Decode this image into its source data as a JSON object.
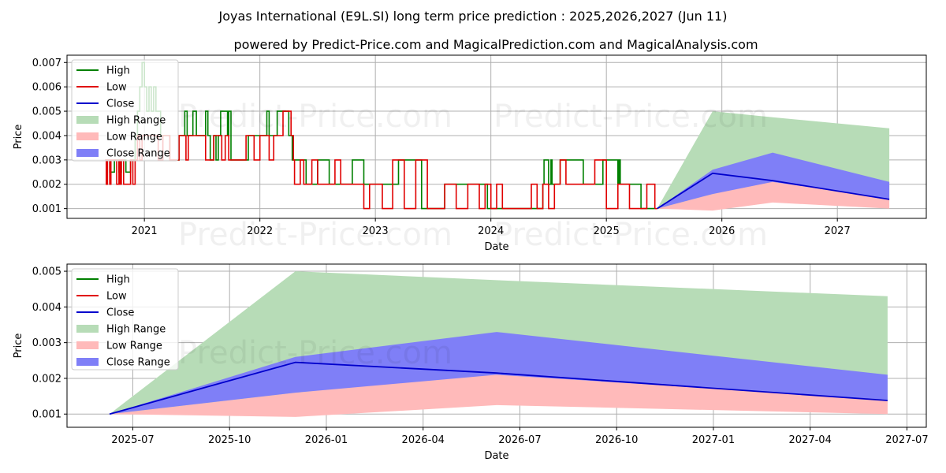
{
  "title": "Joyas International (E9L.SI) long term price prediction : 2025,2026,2027 (Jun 11)",
  "subtitle": "powered by Predict-Price.com and MagicalPrediction.com and MagicalAnalysis.com",
  "watermark": "Predict-Price.com",
  "colors": {
    "high": "#008000",
    "low": "#e00000",
    "close": "#0000cc",
    "high_range": "#b7dcb7",
    "low_range": "#ffbaba",
    "close_range": "#7f7ff7"
  },
  "chart_data": [
    {
      "type": "line",
      "xlabel": "Date",
      "ylabel": "Price",
      "xlim": [
        2020.33,
        2027.77
      ],
      "ylim": [
        0.0006,
        0.0073
      ],
      "x_ticks": [
        2021,
        2022,
        2023,
        2024,
        2025,
        2026,
        2027
      ],
      "x_tick_labels": [
        "2021",
        "2022",
        "2023",
        "2024",
        "2025",
        "2026",
        "2027"
      ],
      "y_ticks": [
        0.001,
        0.002,
        0.003,
        0.004,
        0.005,
        0.006,
        0.007
      ],
      "y_tick_labels": [
        "0.001",
        "0.002",
        "0.003",
        "0.004",
        "0.005",
        "0.006",
        "0.007"
      ],
      "grid": true,
      "legend": {
        "position": "top-left",
        "entries": [
          "High",
          "Low",
          "Close",
          "High Range",
          "Low Range",
          "Close Range"
        ]
      },
      "history_high": {
        "x": [
          2020.66,
          2020.7,
          2020.74,
          2020.78,
          2020.8,
          2020.84,
          2020.88,
          2020.92,
          2020.94,
          2020.96,
          2020.98,
          2021.0,
          2021.02,
          2021.04,
          2021.06,
          2021.08,
          2021.1,
          2021.14,
          2021.18,
          2021.22,
          2021.26,
          2021.3,
          2021.34,
          2021.35,
          2021.37,
          2021.4,
          2021.42,
          2021.45,
          2021.5,
          2021.53,
          2021.55,
          2021.57,
          2021.6,
          2021.62,
          2021.64,
          2021.66,
          2021.7,
          2021.72,
          2021.73,
          2021.75,
          2021.8,
          2021.85,
          2021.9,
          2021.95,
          2022.0,
          2022.05,
          2022.06,
          2022.08,
          2022.15,
          2022.2,
          2022.25,
          2022.28,
          2022.3,
          2022.4,
          2022.5,
          2022.6,
          2022.7,
          2022.8,
          2022.9,
          2023.0,
          2023.05,
          2023.2,
          2023.4,
          2023.6,
          2023.8,
          2023.95,
          2023.96,
          2023.97,
          2024.1,
          2024.3,
          2024.45,
          2024.46,
          2024.5,
          2024.52,
          2024.53,
          2024.6,
          2024.8,
          2024.97,
          2025.1,
          2025.11,
          2025.12,
          2025.2,
          2025.3,
          2025.42
        ],
        "y": [
          0.003,
          0.0025,
          0.003,
          0.0025,
          0.003,
          0.0025,
          0.003,
          0.004,
          0.005,
          0.006,
          0.007,
          0.006,
          0.005,
          0.006,
          0.005,
          0.006,
          0.005,
          0.004,
          0.004,
          0.003,
          0.003,
          0.004,
          0.004,
          0.005,
          0.004,
          0.004,
          0.005,
          0.004,
          0.004,
          0.005,
          0.004,
          0.003,
          0.004,
          0.003,
          0.004,
          0.005,
          0.005,
          0.004,
          0.005,
          0.003,
          0.003,
          0.003,
          0.004,
          0.004,
          0.004,
          0.004,
          0.005,
          0.004,
          0.005,
          0.005,
          0.004,
          0.003,
          0.003,
          0.002,
          0.003,
          0.002,
          0.002,
          0.003,
          0.002,
          0.002,
          0.002,
          0.003,
          0.001,
          0.002,
          0.002,
          0.002,
          0.002,
          0.001,
          0.001,
          0.001,
          0.002,
          0.003,
          0.002,
          0.003,
          0.002,
          0.003,
          0.002,
          0.003,
          0.002,
          0.003,
          0.002,
          0.002,
          0.001,
          0.001
        ]
      },
      "history_low": {
        "x": [
          2020.66,
          2020.67,
          2020.68,
          2020.7,
          2020.71,
          2020.72,
          2020.74,
          2020.76,
          2020.78,
          2020.79,
          2020.8,
          2020.82,
          2020.84,
          2020.86,
          2020.88,
          2020.9,
          2020.92,
          2020.94,
          2020.96,
          2020.98,
          2021.0,
          2021.04,
          2021.08,
          2021.12,
          2021.16,
          2021.2,
          2021.22,
          2021.26,
          2021.3,
          2021.33,
          2021.36,
          2021.38,
          2021.42,
          2021.46,
          2021.5,
          2021.53,
          2021.57,
          2021.6,
          2021.63,
          2021.67,
          2021.7,
          2021.73,
          2021.76,
          2021.8,
          2021.85,
          2021.88,
          2021.92,
          2021.95,
          2022.0,
          2022.04,
          2022.08,
          2022.12,
          2022.15,
          2022.2,
          2022.25,
          2022.27,
          2022.29,
          2022.3,
          2022.35,
          2022.38,
          2022.42,
          2022.45,
          2022.5,
          2022.55,
          2022.63,
          2022.65,
          2022.7,
          2022.75,
          2022.85,
          2022.9,
          2022.95,
          2023.03,
          2023.06,
          2023.1,
          2023.15,
          2023.25,
          2023.35,
          2023.45,
          2023.5,
          2023.55,
          2023.6,
          2023.7,
          2023.8,
          2023.9,
          2023.95,
          2024.0,
          2024.05,
          2024.1,
          2024.2,
          2024.3,
          2024.35,
          2024.4,
          2024.45,
          2024.5,
          2024.55,
          2024.6,
          2024.65,
          2024.7,
          2024.8,
          2024.9,
          2024.98,
          2025.0,
          2025.05,
          2025.1,
          2025.15,
          2025.2,
          2025.25,
          2025.3,
          2025.35,
          2025.42
        ],
        "y": [
          0.003,
          0.002,
          0.003,
          0.002,
          0.003,
          0.003,
          0.003,
          0.002,
          0.003,
          0.002,
          0.003,
          0.002,
          0.002,
          0.002,
          0.003,
          0.002,
          0.003,
          0.004,
          0.003,
          0.004,
          0.004,
          0.004,
          0.004,
          0.003,
          0.004,
          0.004,
          0.003,
          0.003,
          0.004,
          0.004,
          0.003,
          0.004,
          0.004,
          0.004,
          0.004,
          0.003,
          0.003,
          0.004,
          0.004,
          0.003,
          0.004,
          0.003,
          0.003,
          0.003,
          0.003,
          0.004,
          0.004,
          0.003,
          0.004,
          0.004,
          0.003,
          0.004,
          0.004,
          0.005,
          0.005,
          0.004,
          0.003,
          0.002,
          0.003,
          0.002,
          0.002,
          0.003,
          0.002,
          0.002,
          0.002,
          0.003,
          0.002,
          0.002,
          0.002,
          0.001,
          0.002,
          0.002,
          0.001,
          0.001,
          0.003,
          0.001,
          0.003,
          0.001,
          0.001,
          0.001,
          0.002,
          0.001,
          0.002,
          0.001,
          0.002,
          0.001,
          0.002,
          0.001,
          0.001,
          0.001,
          0.002,
          0.001,
          0.002,
          0.001,
          0.002,
          0.003,
          0.002,
          0.002,
          0.002,
          0.003,
          0.003,
          0.001,
          0.001,
          0.002,
          0.002,
          0.001,
          0.001,
          0.001,
          0.002,
          0.001
        ]
      },
      "forecast": {
        "x": [
          2025.44,
          2025.92,
          2026.44,
          2027.45
        ],
        "close": [
          0.001,
          0.00245,
          0.00215,
          0.00138
        ],
        "high_range_upper": [
          0.001,
          0.005,
          0.00475,
          0.0043
        ],
        "high_range_lower": [
          0.001,
          0.00125,
          0.0015,
          0.0013
        ],
        "close_range_upper": [
          0.001,
          0.0026,
          0.0033,
          0.0021
        ],
        "close_range_lower": [
          0.001,
          0.0016,
          0.0021,
          0.0014
        ],
        "low_range_upper": [
          0.001,
          0.0016,
          0.00215,
          0.0014
        ],
        "low_range_lower": [
          0.001,
          0.00092,
          0.00125,
          0.001
        ]
      }
    },
    {
      "type": "line",
      "xlabel": "Date",
      "ylabel": "Price",
      "xlim": [
        2025.33,
        2027.55
      ],
      "ylim": [
        0.00063,
        0.0052
      ],
      "x_ticks": [
        2025.5,
        2025.75,
        2026.0,
        2026.25,
        2026.5,
        2026.75,
        2027.0,
        2027.25,
        2027.5
      ],
      "x_tick_labels": [
        "2025-07",
        "2025-10",
        "2026-01",
        "2026-04",
        "2026-07",
        "2026-10",
        "2027-01",
        "2027-04",
        "2027-07"
      ],
      "y_ticks": [
        0.001,
        0.002,
        0.003,
        0.004,
        0.005
      ],
      "y_tick_labels": [
        "0.001",
        "0.002",
        "0.003",
        "0.004",
        "0.005"
      ],
      "grid": true,
      "legend": {
        "position": "top-left",
        "entries": [
          "High",
          "Low",
          "Close",
          "High Range",
          "Low Range",
          "Close Range"
        ]
      },
      "forecast": {
        "x": [
          2025.44,
          2025.92,
          2026.44,
          2027.45
        ],
        "close": [
          0.001,
          0.00245,
          0.00215,
          0.00138
        ],
        "high_range_upper": [
          0.001,
          0.005,
          0.00475,
          0.0043
        ],
        "high_range_lower": [
          0.001,
          0.00125,
          0.0015,
          0.0013
        ],
        "close_range_upper": [
          0.001,
          0.0026,
          0.0033,
          0.0021
        ],
        "close_range_lower": [
          0.001,
          0.0016,
          0.0021,
          0.0014
        ],
        "low_range_upper": [
          0.001,
          0.0016,
          0.00215,
          0.0014
        ],
        "low_range_lower": [
          0.001,
          0.00092,
          0.00125,
          0.001
        ]
      }
    }
  ]
}
